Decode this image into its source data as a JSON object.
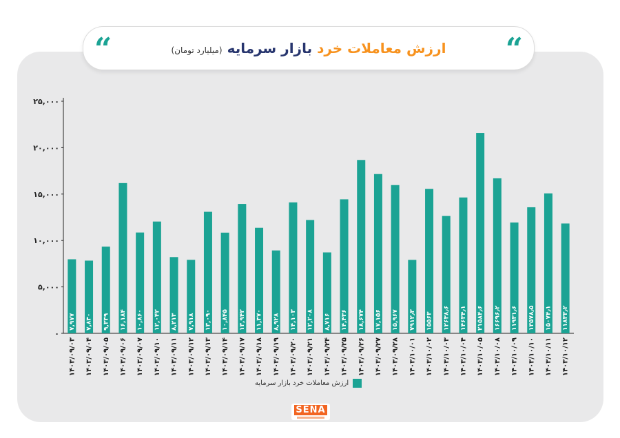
{
  "title": {
    "part1": "ارزش معاملات خرد",
    "part2": "بازار سرمایه",
    "unit": "(میلیارد تومان)"
  },
  "quote_glyph": "“",
  "logo": {
    "text": "SENA"
  },
  "colors": {
    "bar": "#1ba394",
    "axis": "#222222"
  },
  "chart_data": {
    "type": "bar",
    "categories": [
      "۱۴۰۳/۰۹/۰۳",
      "۱۴۰۳/۰۹/۰۴",
      "۱۴۰۳/۰۹/۰۵",
      "۱۴۰۳/۰۹/۰۶",
      "۱۴۰۳/۰۹/۰۷",
      "۱۴۰۳/۰۹/۱۰",
      "۱۴۰۳/۰۹/۱۱",
      "۱۴۰۳/۰۹/۱۲",
      "۱۴۰۳/۰۹/۱۳",
      "۱۴۰۳/۰۹/۱۴",
      "۱۴۰۳/۰۹/۱۷",
      "۱۴۰۳/۰۹/۱۸",
      "۱۴۰۳/۰۹/۱۹",
      "۱۴۰۳/۰۹/۲۰",
      "۱۴۰۳/۰۹/۲۱",
      "۱۴۰۳/۰۹/۲۴",
      "۱۴۰۳/۰۹/۲۵",
      "۱۴۰۳/۰۹/۲۶",
      "۱۴۰۳/۰۹/۲۷",
      "۱۴۰۳/۰۹/۲۸",
      "۱۴۰۳/۱۰/۰۱",
      "۱۴۰۳/۱۰/۰۲",
      "۱۴۰۳/۱۰/۰۳",
      "۱۴۰۳/۱۰/۰۴",
      "۱۴۰۳/۱۰/۰۵",
      "۱۴۰۳/۱۰/۰۸",
      "۱۴۰۳/۱۰/۰۹",
      "۱۴۰۳/۱۰/۱۰",
      "۱۴۰۳/۱۰/۱۱",
      "۱۴۰۳/۱۰/۱۲"
    ],
    "values": [
      7977,
      7830,
      9339,
      16184,
      10860,
      12042,
      8213,
      7918,
      13090,
      10845,
      13942,
      11370,
      8928,
      14103,
      12208,
      8716,
      14436,
      18674,
      17156,
      15967,
      7912.3,
      15563,
      12638.6,
      14634.1,
      21584.6,
      16696.2,
      11931.6,
      13578.5,
      15074.1,
      11833.2
    ],
    "value_labels": [
      "۷,۹۷۷",
      "۷,۸۳۰",
      "۹,۳۳۹",
      "۱۶,۱۸۴",
      "۱۰,۸۶۰",
      "۱۲,۰۴۲",
      "۸,۲۱۳",
      "۷,۹۱۸",
      "۱۳,۰۹۰",
      "۱۰,۸۴۵",
      "۱۳,۹۴۲",
      "۱۱,۳۷۰",
      "۸,۹۲۸",
      "۱۴,۱۰۳",
      "۱۲,۲۰۸",
      "۸,۷۱۶",
      "۱۴,۴۳۶",
      "۱۸,۶۷۴",
      "۱۷,۱۵۶",
      "۱۵,۹۶۷",
      "۷۹۱۲٫۳",
      "۱۵۵۶۳",
      "۱۲۶۳۸٫۶",
      "۱۴۶۳۴٫۱",
      "۲۱۵۸۴٫۶",
      "۱۶۶۹۶٫۲",
      "۱۱۹۳۱٫۶",
      "۱۳۵۷۸٫۵",
      "۱۵۰۷۴٫۱",
      "۱۱۸۳۳٫۲"
    ],
    "ylim": [
      0,
      25000
    ],
    "yticks": [
      0,
      5000,
      10000,
      15000,
      20000,
      25000
    ],
    "ytick_labels": [
      "۰",
      "۵,۰۰۰",
      "۱۰,۰۰۰",
      "۱۵,۰۰۰",
      "۲۰,۰۰۰",
      "۲۵,۰۰۰"
    ],
    "series_name": "ارزش معاملات خرد بازار سرمایه",
    "legend_position": "bottom",
    "grid": false
  }
}
